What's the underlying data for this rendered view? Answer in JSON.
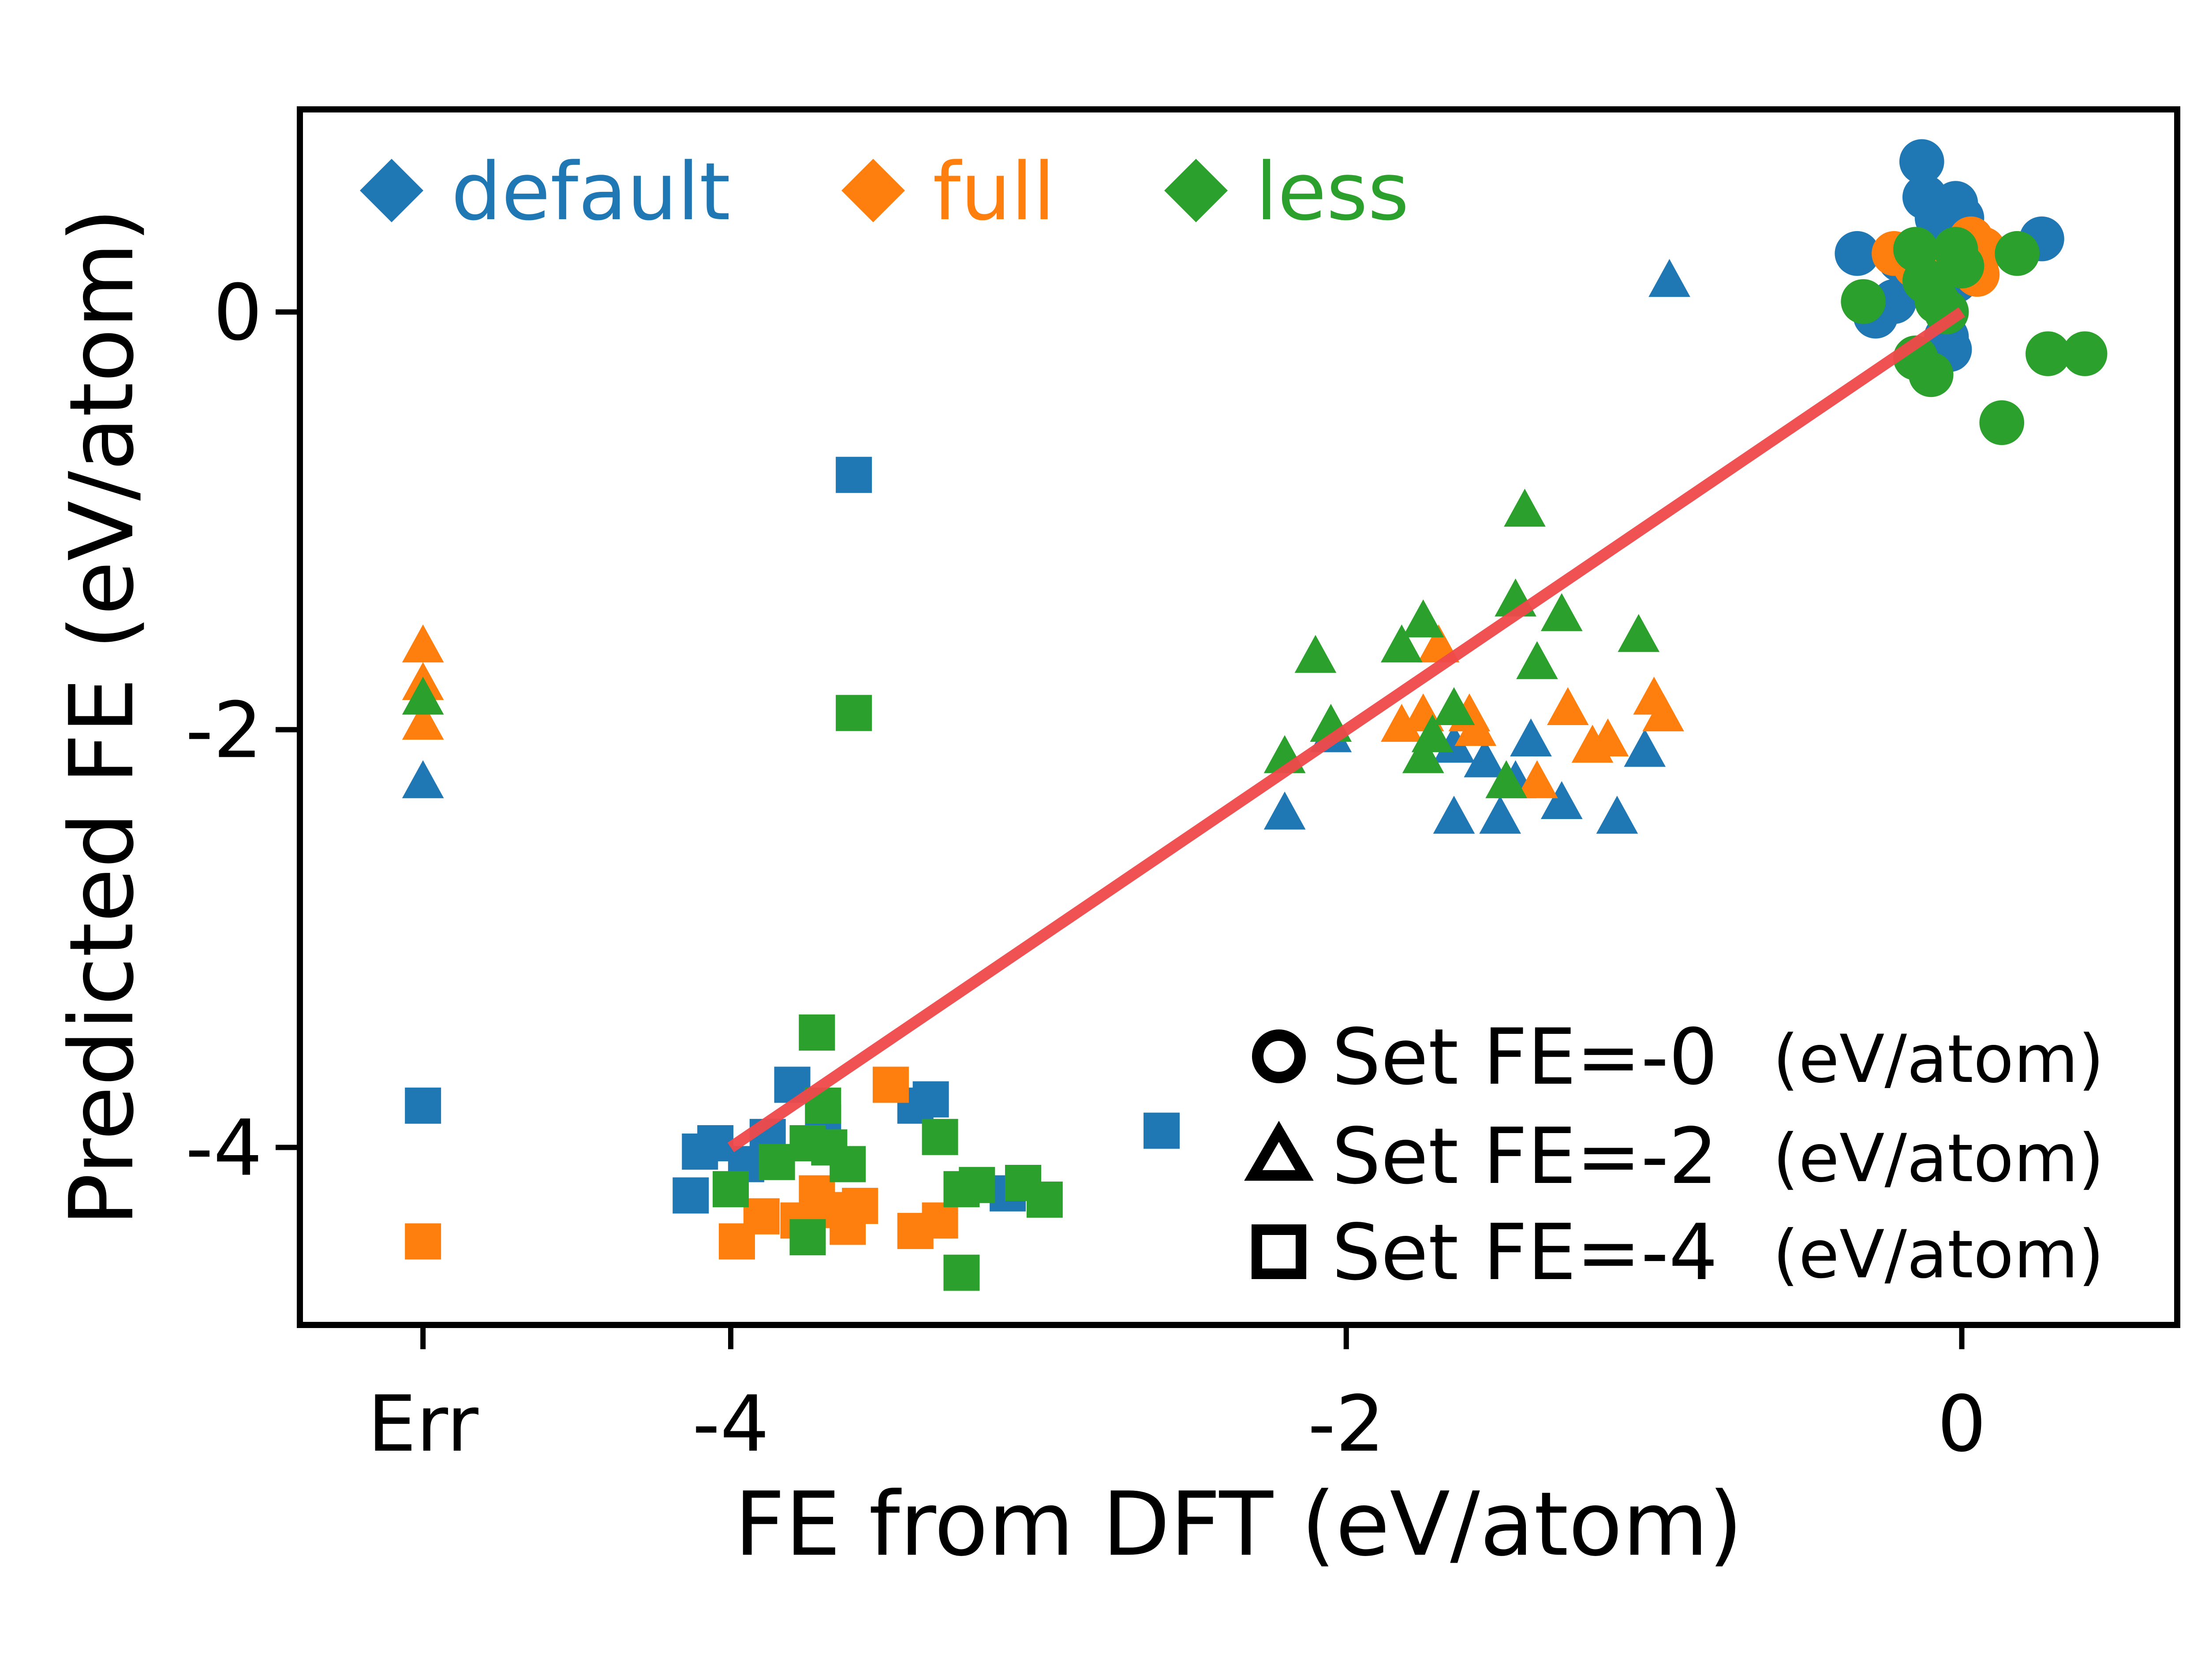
{
  "chart_data": {
    "type": "scatter",
    "title": "",
    "xlabel": "FE from DFT (eV/atom)",
    "ylabel": "Predicted FE (eV/atom)",
    "xlim": [
      -5.4,
      0.7
    ],
    "ylim": [
      -4.85,
      0.97
    ],
    "x_tick_values": [
      -5,
      -4,
      -2,
      0
    ],
    "x_tick_labels": [
      "Err",
      "-4",
      "-2",
      "0"
    ],
    "y_tick_values": [
      0,
      -2,
      -4
    ],
    "y_tick_labels": [
      "0",
      "-2",
      "-4"
    ],
    "grid": false,
    "fit_line": {
      "color": "#f0494a",
      "x": [
        -4.0,
        0.0
      ],
      "y": [
        -4.0,
        0.0
      ]
    },
    "colors": {
      "default": "#1f77b4",
      "full": "#ff7f0e",
      "less": "#2ca02c"
    },
    "color_legend": {
      "placement": "top-left",
      "entries": [
        {
          "label": "default",
          "color": "#1f77b4",
          "marker": "diamond"
        },
        {
          "label": "full",
          "color": "#ff7f0e",
          "marker": "diamond"
        },
        {
          "label": "less",
          "color": "#2ca02c",
          "marker": "diamond"
        }
      ]
    },
    "marker_legend": {
      "placement": "lower-right",
      "unit": "(eV/atom)",
      "entries": [
        {
          "marker": "circle",
          "label": "Set FE=-0"
        },
        {
          "marker": "triangle",
          "label": "Set FE=-2"
        },
        {
          "marker": "square",
          "label": "Set FE=-4"
        }
      ]
    },
    "series": [
      {
        "name": "default",
        "points": [
          {
            "m": "circle",
            "x": -0.13,
            "y": 0.72
          },
          {
            "m": "circle",
            "x": -0.12,
            "y": 0.55
          },
          {
            "m": "circle",
            "x": -0.08,
            "y": 0.45
          },
          {
            "m": "circle",
            "x": -0.02,
            "y": 0.52
          },
          {
            "m": "circle",
            "x": 0.0,
            "y": 0.45
          },
          {
            "m": "circle",
            "x": 0.26,
            "y": 0.35
          },
          {
            "m": "circle",
            "x": -0.34,
            "y": 0.28
          },
          {
            "m": "circle",
            "x": -0.2,
            "y": 0.25
          },
          {
            "m": "circle",
            "x": -0.1,
            "y": 0.12
          },
          {
            "m": "circle",
            "x": -0.22,
            "y": 0.05
          },
          {
            "m": "circle",
            "x": -0.28,
            "y": -0.02
          },
          {
            "m": "circle",
            "x": -0.02,
            "y": 0.15
          },
          {
            "m": "circle",
            "x": -0.05,
            "y": -0.12
          },
          {
            "m": "circle",
            "x": -0.04,
            "y": -0.18
          },
          {
            "m": "circle",
            "x": -0.08,
            "y": 0.2
          },
          {
            "m": "triangle",
            "x": -0.95,
            "y": 0.15
          },
          {
            "m": "triangle",
            "x": -2.2,
            "y": -2.4
          },
          {
            "m": "triangle",
            "x": -2.05,
            "y": -2.03
          },
          {
            "m": "triangle",
            "x": -1.65,
            "y": -2.08
          },
          {
            "m": "triangle",
            "x": -1.65,
            "y": -2.42
          },
          {
            "m": "triangle",
            "x": -1.55,
            "y": -2.15
          },
          {
            "m": "triangle",
            "x": -1.5,
            "y": -2.42
          },
          {
            "m": "triangle",
            "x": -1.45,
            "y": -2.25
          },
          {
            "m": "triangle",
            "x": -1.4,
            "y": -2.05
          },
          {
            "m": "triangle",
            "x": -1.3,
            "y": -2.35
          },
          {
            "m": "triangle",
            "x": -1.12,
            "y": -2.42
          },
          {
            "m": "triangle",
            "x": -1.03,
            "y": -2.1
          },
          {
            "m": "triangle",
            "x": -5.0,
            "y": -2.25
          },
          {
            "m": "square",
            "x": -3.6,
            "y": -0.78
          },
          {
            "m": "square",
            "x": -2.6,
            "y": -3.92
          },
          {
            "m": "square",
            "x": -3.8,
            "y": -3.7
          },
          {
            "m": "square",
            "x": -3.7,
            "y": -3.88
          },
          {
            "m": "square",
            "x": -3.88,
            "y": -3.95
          },
          {
            "m": "square",
            "x": -3.35,
            "y": -3.77
          },
          {
            "m": "square",
            "x": -3.4,
            "y": -3.8
          },
          {
            "m": "square",
            "x": -4.05,
            "y": -3.98
          },
          {
            "m": "square",
            "x": -4.1,
            "y": -4.02
          },
          {
            "m": "square",
            "x": -4.13,
            "y": -4.23
          },
          {
            "m": "square",
            "x": -3.95,
            "y": -4.08
          },
          {
            "m": "square",
            "x": -3.1,
            "y": -4.22
          },
          {
            "m": "square",
            "x": -5.0,
            "y": -3.8
          }
        ]
      },
      {
        "name": "full",
        "points": [
          {
            "m": "circle",
            "x": -0.22,
            "y": 0.28
          },
          {
            "m": "circle",
            "x": -0.15,
            "y": 0.22
          },
          {
            "m": "circle",
            "x": 0.03,
            "y": 0.35
          },
          {
            "m": "circle",
            "x": 0.07,
            "y": 0.3
          },
          {
            "m": "circle",
            "x": 0.05,
            "y": 0.18
          },
          {
            "m": "circle",
            "x": -0.05,
            "y": 0.25
          },
          {
            "m": "triangle",
            "x": -1.75,
            "y": -1.93
          },
          {
            "m": "triangle",
            "x": -1.82,
            "y": -1.98
          },
          {
            "m": "triangle",
            "x": -1.7,
            "y": -1.6
          },
          {
            "m": "triangle",
            "x": -1.6,
            "y": -1.93
          },
          {
            "m": "triangle",
            "x": -1.58,
            "y": -2.0
          },
          {
            "m": "triangle",
            "x": -1.38,
            "y": -2.25
          },
          {
            "m": "triangle",
            "x": -1.28,
            "y": -1.9
          },
          {
            "m": "triangle",
            "x": -1.2,
            "y": -2.08
          },
          {
            "m": "triangle",
            "x": -1.15,
            "y": -2.05
          },
          {
            "m": "triangle",
            "x": -1.0,
            "y": -1.85
          },
          {
            "m": "triangle",
            "x": -0.97,
            "y": -1.93
          },
          {
            "m": "triangle",
            "x": -5.0,
            "y": -1.6
          },
          {
            "m": "triangle",
            "x": -5.0,
            "y": -1.78
          },
          {
            "m": "triangle",
            "x": -5.0,
            "y": -1.97
          },
          {
            "m": "square",
            "x": -3.48,
            "y": -3.7
          },
          {
            "m": "square",
            "x": -3.98,
            "y": -4.45
          },
          {
            "m": "square",
            "x": -3.9,
            "y": -4.33
          },
          {
            "m": "square",
            "x": -3.78,
            "y": -4.35
          },
          {
            "m": "square",
            "x": -3.72,
            "y": -4.22
          },
          {
            "m": "square",
            "x": -3.67,
            "y": -4.3
          },
          {
            "m": "square",
            "x": -3.62,
            "y": -4.38
          },
          {
            "m": "square",
            "x": -3.58,
            "y": -4.28
          },
          {
            "m": "square",
            "x": -3.4,
            "y": -4.4
          },
          {
            "m": "square",
            "x": -3.32,
            "y": -4.35
          },
          {
            "m": "square",
            "x": -5.0,
            "y": -4.45
          }
        ]
      },
      {
        "name": "less",
        "points": [
          {
            "m": "circle",
            "x": -0.15,
            "y": 0.3
          },
          {
            "m": "circle",
            "x": -0.02,
            "y": 0.3
          },
          {
            "m": "circle",
            "x": 0.0,
            "y": 0.22
          },
          {
            "m": "circle",
            "x": 0.18,
            "y": 0.28
          },
          {
            "m": "circle",
            "x": -0.32,
            "y": 0.05
          },
          {
            "m": "circle",
            "x": -0.12,
            "y": 0.15
          },
          {
            "m": "circle",
            "x": -0.08,
            "y": 0.05
          },
          {
            "m": "circle",
            "x": -0.05,
            "y": 0.0
          },
          {
            "m": "circle",
            "x": -0.15,
            "y": -0.22
          },
          {
            "m": "circle",
            "x": -0.1,
            "y": -0.3
          },
          {
            "m": "circle",
            "x": 0.28,
            "y": -0.2
          },
          {
            "m": "circle",
            "x": 0.4,
            "y": -0.2
          },
          {
            "m": "circle",
            "x": 0.13,
            "y": -0.53
          },
          {
            "m": "triangle",
            "x": -1.42,
            "y": -0.95
          },
          {
            "m": "triangle",
            "x": -1.45,
            "y": -1.38
          },
          {
            "m": "triangle",
            "x": -1.75,
            "y": -1.48
          },
          {
            "m": "triangle",
            "x": -1.82,
            "y": -1.6
          },
          {
            "m": "triangle",
            "x": -2.1,
            "y": -1.65
          },
          {
            "m": "triangle",
            "x": -1.3,
            "y": -1.45
          },
          {
            "m": "triangle",
            "x": -1.38,
            "y": -1.68
          },
          {
            "m": "triangle",
            "x": -1.05,
            "y": -1.55
          },
          {
            "m": "triangle",
            "x": -2.05,
            "y": -1.98
          },
          {
            "m": "triangle",
            "x": -2.2,
            "y": -2.13
          },
          {
            "m": "triangle",
            "x": -1.65,
            "y": -1.9
          },
          {
            "m": "triangle",
            "x": -1.72,
            "y": -2.03
          },
          {
            "m": "triangle",
            "x": -1.75,
            "y": -2.13
          },
          {
            "m": "triangle",
            "x": -1.48,
            "y": -2.25
          },
          {
            "m": "triangle",
            "x": -5.0,
            "y": -1.85
          },
          {
            "m": "square",
            "x": -3.6,
            "y": -1.92
          },
          {
            "m": "square",
            "x": -3.72,
            "y": -3.45
          },
          {
            "m": "square",
            "x": -3.7,
            "y": -3.8
          },
          {
            "m": "square",
            "x": -3.75,
            "y": -3.98
          },
          {
            "m": "square",
            "x": -3.85,
            "y": -4.07
          },
          {
            "m": "square",
            "x": -3.68,
            "y": -4.0
          },
          {
            "m": "square",
            "x": -3.62,
            "y": -4.08
          },
          {
            "m": "square",
            "x": -3.32,
            "y": -3.95
          },
          {
            "m": "square",
            "x": -4.0,
            "y": -4.2
          },
          {
            "m": "square",
            "x": -3.25,
            "y": -4.2
          },
          {
            "m": "square",
            "x": -3.2,
            "y": -4.18
          },
          {
            "m": "square",
            "x": -3.05,
            "y": -4.17
          },
          {
            "m": "square",
            "x": -2.98,
            "y": -4.25
          },
          {
            "m": "square",
            "x": -3.75,
            "y": -4.43
          },
          {
            "m": "square",
            "x": -3.25,
            "y": -4.6
          }
        ]
      }
    ]
  }
}
